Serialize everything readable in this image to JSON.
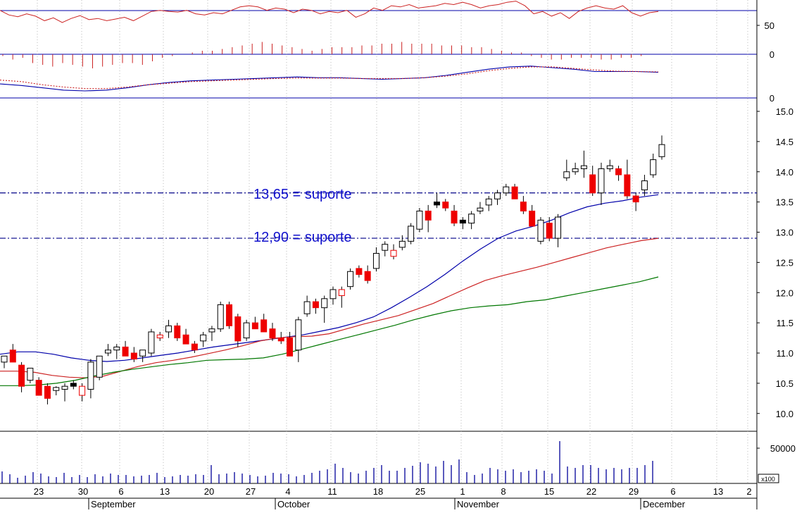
{
  "chart_data": [
    {
      "type": "line",
      "panel": "oscillator",
      "title": "",
      "ylim": [
        0,
        100
      ],
      "y_ticks": [
        "50",
        "0"
      ],
      "reference_level": 75,
      "series": [
        {
          "color": "#cc2222",
          "values": [
            76,
            68,
            65,
            70,
            66,
            58,
            63,
            55,
            62,
            67,
            60,
            62,
            58,
            61,
            64,
            58,
            66,
            74,
            76,
            74,
            73,
            76,
            70,
            68,
            72,
            70,
            76,
            82,
            84,
            82,
            76,
            80,
            78,
            72,
            78,
            76,
            70,
            74,
            72,
            76,
            64,
            70,
            80,
            76,
            84,
            82,
            86,
            80,
            82,
            84,
            88,
            86,
            90,
            86,
            80,
            84,
            86,
            90,
            92,
            84,
            70,
            74,
            66,
            72,
            62,
            74,
            80,
            84,
            80,
            78,
            84,
            72,
            66,
            72,
            74
          ]
        }
      ],
      "bar_series": {
        "color": "#cc2222",
        "baseline": 0,
        "values": [
          -2,
          -6,
          -4,
          -10,
          -12,
          -14,
          -10,
          -12,
          -14,
          -16,
          -14,
          -12,
          -10,
          -10,
          -12,
          -8,
          -4,
          -2,
          0,
          2,
          4,
          4,
          6,
          8,
          10,
          12,
          14,
          12,
          10,
          8,
          6,
          4,
          6,
          8,
          8,
          8,
          10,
          10,
          12,
          12,
          14,
          12,
          12,
          12,
          10,
          10,
          10,
          8,
          8,
          6,
          4,
          2,
          2,
          -2,
          -4,
          -6,
          -6,
          -4,
          -4,
          -4,
          -6,
          -6,
          -4,
          -4,
          -2,
          0
        ]
      }
    },
    {
      "type": "line",
      "panel": "macd",
      "title": "",
      "y_ticks": [
        "0"
      ],
      "series": [
        {
          "color": "#0000aa",
          "style": "solid",
          "values": [
            -2,
            -6,
            -12,
            -18,
            -20,
            -18,
            -12,
            -4,
            2,
            6,
            8,
            10,
            12,
            14,
            16,
            14,
            14,
            12,
            10,
            12,
            14,
            20,
            28,
            36,
            42,
            44,
            40,
            36,
            30,
            30,
            30,
            28
          ]
        },
        {
          "color": "#cc2222",
          "style": "dotted",
          "values": [
            8,
            4,
            -4,
            -10,
            -14,
            -14,
            -10,
            -4,
            0,
            4,
            6,
            8,
            10,
            12,
            13,
            13,
            13,
            12,
            12,
            12,
            14,
            18,
            24,
            32,
            38,
            42,
            42,
            38,
            34,
            31,
            30,
            29
          ]
        }
      ]
    },
    {
      "type": "candlestick",
      "panel": "price",
      "title": "",
      "ylim": [
        9.8,
        15.2
      ],
      "y_ticks": [
        "15.0",
        "14.5",
        "14.0",
        "13.5",
        "13.0",
        "12.5",
        "12.0",
        "11.5",
        "11.0",
        "10.5",
        "10.0"
      ],
      "support_lines": [
        13.65,
        12.9
      ],
      "annotations": [
        "13,65 = suporte",
        "12,90 = suporte"
      ],
      "candles": [
        {
          "o": 10.85,
          "h": 10.95,
          "l": 10.75,
          "c": 10.95,
          "col": "white"
        },
        {
          "o": 11.05,
          "h": 11.15,
          "l": 10.85,
          "c": 10.85,
          "col": "red"
        },
        {
          "o": 10.8,
          "h": 10.85,
          "l": 10.35,
          "c": 10.45,
          "col": "red"
        },
        {
          "o": 10.55,
          "h": 10.75,
          "l": 10.5,
          "c": 10.75,
          "col": "white"
        },
        {
          "o": 10.55,
          "h": 10.6,
          "l": 10.3,
          "c": 10.3,
          "col": "red"
        },
        {
          "o": 10.45,
          "h": 10.5,
          "l": 10.15,
          "c": 10.25,
          "col": "red"
        },
        {
          "o": 10.38,
          "h": 10.45,
          "l": 10.3,
          "c": 10.43,
          "col": "white"
        },
        {
          "o": 10.4,
          "h": 10.5,
          "l": 10.2,
          "c": 10.45,
          "col": "white"
        },
        {
          "o": 10.45,
          "h": 10.55,
          "l": 10.4,
          "c": 10.5,
          "col": "black"
        },
        {
          "o": 10.45,
          "h": 10.5,
          "l": 10.2,
          "c": 10.3,
          "col": "red-hollow"
        },
        {
          "o": 10.4,
          "h": 10.9,
          "l": 10.25,
          "c": 10.85,
          "col": "white"
        },
        {
          "o": 10.6,
          "h": 10.95,
          "l": 10.55,
          "c": 10.95,
          "col": "white"
        },
        {
          "o": 11.0,
          "h": 11.15,
          "l": 10.95,
          "c": 11.05,
          "col": "white"
        },
        {
          "o": 11.05,
          "h": 11.15,
          "l": 10.9,
          "c": 11.1,
          "col": "white"
        },
        {
          "o": 11.1,
          "h": 11.2,
          "l": 10.95,
          "c": 10.95,
          "col": "red"
        },
        {
          "o": 11.0,
          "h": 11.1,
          "l": 10.85,
          "c": 10.9,
          "col": "red"
        },
        {
          "o": 10.95,
          "h": 11.05,
          "l": 10.85,
          "c": 11.05,
          "col": "white"
        },
        {
          "o": 11.0,
          "h": 11.4,
          "l": 10.95,
          "c": 11.35,
          "col": "white"
        },
        {
          "o": 11.25,
          "h": 11.35,
          "l": 11.2,
          "c": 11.3,
          "col": "red-hollow"
        },
        {
          "o": 11.35,
          "h": 11.55,
          "l": 11.25,
          "c": 11.45,
          "col": "white"
        },
        {
          "o": 11.45,
          "h": 11.5,
          "l": 11.2,
          "c": 11.25,
          "col": "red"
        },
        {
          "o": 11.3,
          "h": 11.4,
          "l": 11.15,
          "c": 11.15,
          "col": "red"
        },
        {
          "o": 11.15,
          "h": 11.2,
          "l": 11.0,
          "c": 11.05,
          "col": "red"
        },
        {
          "o": 11.2,
          "h": 11.35,
          "l": 11.1,
          "c": 11.3,
          "col": "white"
        },
        {
          "o": 11.35,
          "h": 11.45,
          "l": 11.2,
          "c": 11.4,
          "col": "white"
        },
        {
          "o": 11.4,
          "h": 11.85,
          "l": 11.35,
          "c": 11.8,
          "col": "white"
        },
        {
          "o": 11.8,
          "h": 11.85,
          "l": 11.4,
          "c": 11.45,
          "col": "red"
        },
        {
          "o": 11.6,
          "h": 11.65,
          "l": 11.1,
          "c": 11.2,
          "col": "red"
        },
        {
          "o": 11.25,
          "h": 11.55,
          "l": 11.2,
          "c": 11.5,
          "col": "white"
        },
        {
          "o": 11.5,
          "h": 11.6,
          "l": 11.4,
          "c": 11.4,
          "col": "red"
        },
        {
          "o": 11.55,
          "h": 11.65,
          "l": 11.35,
          "c": 11.35,
          "col": "red"
        },
        {
          "o": 11.4,
          "h": 11.5,
          "l": 11.2,
          "c": 11.25,
          "col": "red"
        },
        {
          "o": 11.25,
          "h": 11.35,
          "l": 11.15,
          "c": 11.2,
          "col": "red"
        },
        {
          "o": 11.25,
          "h": 11.35,
          "l": 10.95,
          "c": 10.95,
          "col": "red"
        },
        {
          "o": 11.05,
          "h": 11.6,
          "l": 10.85,
          "c": 11.55,
          "col": "white"
        },
        {
          "o": 11.65,
          "h": 11.95,
          "l": 11.6,
          "c": 11.85,
          "col": "white"
        },
        {
          "o": 11.75,
          "h": 11.9,
          "l": 11.65,
          "c": 11.85,
          "col": "red"
        },
        {
          "o": 11.75,
          "h": 11.95,
          "l": 11.5,
          "c": 11.9,
          "col": "white"
        },
        {
          "o": 11.9,
          "h": 12.1,
          "l": 11.8,
          "c": 12.05,
          "col": "white"
        },
        {
          "o": 12.05,
          "h": 12.1,
          "l": 11.75,
          "c": 11.95,
          "col": "red-hollow"
        },
        {
          "o": 12.1,
          "h": 12.4,
          "l": 12.05,
          "c": 12.35,
          "col": "white"
        },
        {
          "o": 12.4,
          "h": 12.45,
          "l": 12.25,
          "c": 12.3,
          "col": "red"
        },
        {
          "o": 12.35,
          "h": 12.45,
          "l": 12.15,
          "c": 12.2,
          "col": "red"
        },
        {
          "o": 12.4,
          "h": 12.75,
          "l": 12.35,
          "c": 12.65,
          "col": "white"
        },
        {
          "o": 12.7,
          "h": 12.85,
          "l": 12.6,
          "c": 12.8,
          "col": "white"
        },
        {
          "o": 12.7,
          "h": 12.8,
          "l": 12.55,
          "c": 12.6,
          "col": "red-hollow"
        },
        {
          "o": 12.75,
          "h": 12.95,
          "l": 12.7,
          "c": 12.85,
          "col": "white"
        },
        {
          "o": 12.85,
          "h": 13.15,
          "l": 12.8,
          "c": 13.1,
          "col": "white"
        },
        {
          "o": 13.05,
          "h": 13.4,
          "l": 13.0,
          "c": 13.35,
          "col": "white"
        },
        {
          "o": 13.35,
          "h": 13.45,
          "l": 13.0,
          "c": 13.2,
          "col": "red"
        },
        {
          "o": 13.45,
          "h": 13.65,
          "l": 13.4,
          "c": 13.5,
          "col": "black"
        },
        {
          "o": 13.5,
          "h": 13.55,
          "l": 13.35,
          "c": 13.4,
          "col": "red"
        },
        {
          "o": 13.35,
          "h": 13.45,
          "l": 13.1,
          "c": 13.15,
          "col": "red"
        },
        {
          "o": 13.15,
          "h": 13.25,
          "l": 13.05,
          "c": 13.2,
          "col": "black"
        },
        {
          "o": 13.15,
          "h": 13.35,
          "l": 13.05,
          "c": 13.3,
          "col": "white"
        },
        {
          "o": 13.35,
          "h": 13.5,
          "l": 13.3,
          "c": 13.4,
          "col": "white"
        },
        {
          "o": 13.45,
          "h": 13.6,
          "l": 13.35,
          "c": 13.55,
          "col": "white"
        },
        {
          "o": 13.55,
          "h": 13.7,
          "l": 13.45,
          "c": 13.65,
          "col": "white"
        },
        {
          "o": 13.65,
          "h": 13.8,
          "l": 13.6,
          "c": 13.75,
          "col": "white"
        },
        {
          "o": 13.75,
          "h": 13.8,
          "l": 13.55,
          "c": 13.55,
          "col": "red"
        },
        {
          "o": 13.5,
          "h": 13.6,
          "l": 13.3,
          "c": 13.35,
          "col": "red"
        },
        {
          "o": 13.35,
          "h": 13.45,
          "l": 13.1,
          "c": 13.1,
          "col": "red"
        },
        {
          "o": 13.2,
          "h": 13.25,
          "l": 12.8,
          "c": 12.85,
          "col": "white"
        },
        {
          "o": 13.15,
          "h": 13.25,
          "l": 12.85,
          "c": 12.9,
          "col": "red"
        },
        {
          "o": 12.9,
          "h": 13.3,
          "l": 12.75,
          "c": 13.25,
          "col": "white"
        },
        {
          "o": 13.9,
          "h": 14.2,
          "l": 13.85,
          "c": 14.0,
          "col": "white"
        },
        {
          "o": 14.0,
          "h": 14.15,
          "l": 13.95,
          "c": 14.05,
          "col": "white"
        },
        {
          "o": 14.05,
          "h": 14.35,
          "l": 13.9,
          "c": 14.1,
          "col": "white"
        },
        {
          "o": 13.95,
          "h": 14.1,
          "l": 13.6,
          "c": 13.65,
          "col": "red"
        },
        {
          "o": 13.65,
          "h": 14.15,
          "l": 13.45,
          "c": 14.05,
          "col": "white"
        },
        {
          "o": 14.05,
          "h": 14.2,
          "l": 14.0,
          "c": 14.1,
          "col": "white"
        },
        {
          "o": 14.05,
          "h": 14.1,
          "l": 13.85,
          "c": 13.95,
          "col": "red"
        },
        {
          "o": 13.95,
          "h": 14.2,
          "l": 13.55,
          "c": 13.6,
          "col": "red"
        },
        {
          "o": 13.6,
          "h": 13.65,
          "l": 13.35,
          "c": 13.5,
          "col": "red"
        },
        {
          "o": 13.7,
          "h": 13.95,
          "l": 13.6,
          "c": 13.85,
          "col": "white"
        },
        {
          "o": 13.95,
          "h": 14.3,
          "l": 13.9,
          "c": 14.2,
          "col": "white"
        },
        {
          "o": 14.25,
          "h": 14.6,
          "l": 14.2,
          "c": 14.45,
          "col": "white"
        }
      ],
      "moving_averages": [
        {
          "color": "#0000aa",
          "values": [
            10.98,
            11.02,
            11.02,
            10.98,
            10.92,
            10.88,
            10.86,
            10.88,
            10.92,
            10.96,
            11.0,
            11.05,
            11.1,
            11.14,
            11.18,
            11.22,
            11.26,
            11.3,
            11.36,
            11.42,
            11.5,
            11.6,
            11.75,
            11.92,
            12.1,
            12.3,
            12.52,
            12.72,
            12.9,
            13.02,
            13.1,
            13.2,
            13.32,
            13.42,
            13.48,
            13.52,
            13.58,
            13.62
          ]
        },
        {
          "color": "#cc2222",
          "values": [
            10.7,
            10.7,
            10.68,
            10.63,
            10.6,
            10.59,
            10.62,
            10.7,
            10.78,
            10.84,
            10.88,
            10.93,
            10.99,
            11.05,
            11.12,
            11.2,
            11.25,
            11.27,
            11.28,
            11.32,
            11.4,
            11.48,
            11.55,
            11.62,
            11.72,
            11.82,
            11.95,
            12.08,
            12.2,
            12.28,
            12.35,
            12.42,
            12.5,
            12.58,
            12.66,
            12.74,
            12.8,
            12.86,
            12.9
          ]
        },
        {
          "color": "#007700",
          "values": [
            10.46,
            10.46,
            10.47,
            10.5,
            10.55,
            10.62,
            10.68,
            10.73,
            10.77,
            10.81,
            10.84,
            10.88,
            10.89,
            10.9,
            10.92,
            10.98,
            11.06,
            11.14,
            11.22,
            11.3,
            11.38,
            11.46,
            11.55,
            11.63,
            11.7,
            11.75,
            11.78,
            11.8,
            11.85,
            11.88,
            11.94,
            12.0,
            12.06,
            12.12,
            12.18,
            12.26
          ]
        }
      ]
    },
    {
      "type": "bar",
      "panel": "volume",
      "title": "",
      "y_ticks": [
        "50000"
      ],
      "unit": "x100",
      "color": "#000099",
      "ylim": [
        0,
        70000
      ],
      "values": [
        17000,
        13000,
        8000,
        11000,
        16000,
        14000,
        10000,
        9000,
        15000,
        9000,
        12000,
        9000,
        13000,
        10000,
        14000,
        12000,
        12000,
        10000,
        11000,
        12000,
        15000,
        9000,
        10000,
        12000,
        11000,
        13000,
        12000,
        26000,
        13000,
        14000,
        16000,
        14000,
        12000,
        10000,
        11000,
        15000,
        14000,
        13000,
        10000,
        12000,
        15000,
        18000,
        20000,
        28000,
        22000,
        16000,
        14000,
        18000,
        22000,
        26000,
        18000,
        18000,
        22000,
        25000,
        30000,
        28000,
        24000,
        32000,
        26000,
        34000,
        16000,
        12000,
        14000,
        22000,
        20000,
        18000,
        20000,
        16000,
        18000,
        20000,
        18000,
        14000,
        60000,
        24000,
        22000,
        26000,
        26000,
        22000,
        20000,
        22000,
        20000,
        22000,
        22000,
        26000,
        32000
      ]
    }
  ],
  "x_axis": {
    "day_labels": [
      "23",
      "30",
      "6",
      "13",
      "20",
      "27",
      "4",
      "11",
      "18",
      "25",
      "1",
      "8",
      "15",
      "22",
      "29",
      "6",
      "13",
      "2"
    ],
    "month_labels": [
      "September",
      "October",
      "November",
      "December"
    ]
  }
}
